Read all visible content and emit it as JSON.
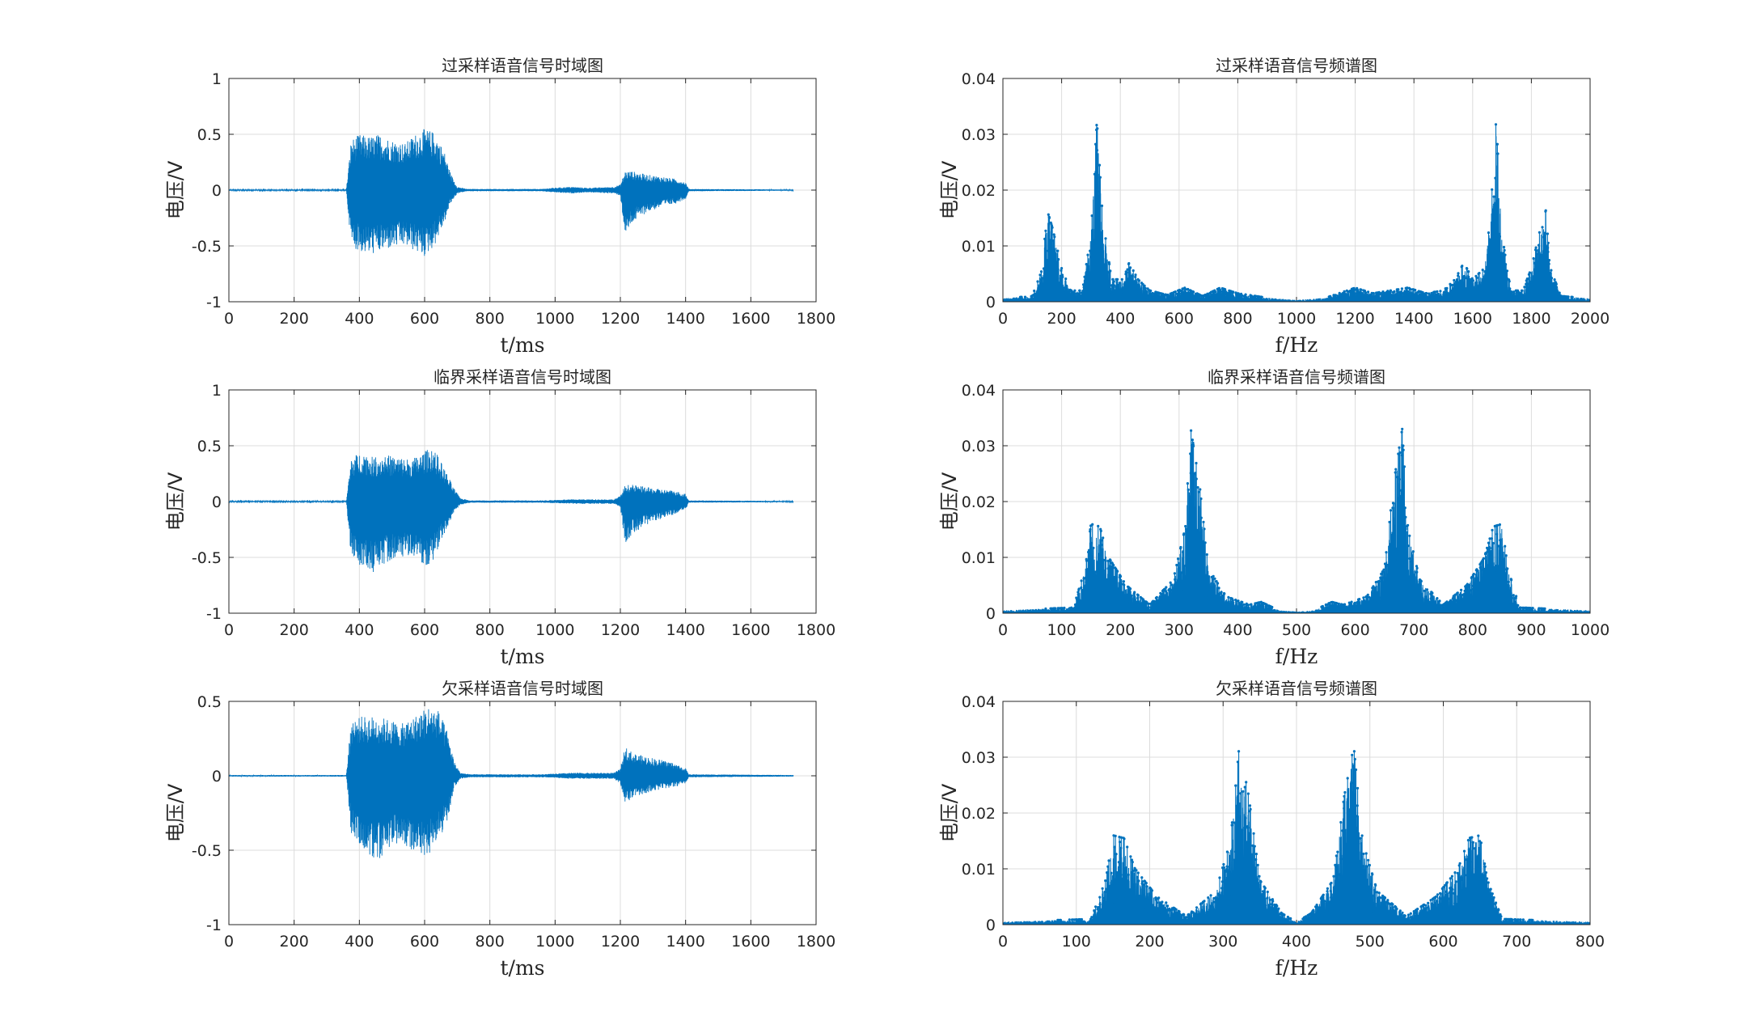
{
  "colors": {
    "line": "#0072BD",
    "grid": "#dcdcdc",
    "axis": "#262626",
    "background": "#ffffff"
  },
  "chart_data": [
    {
      "id": "over-time",
      "type": "line",
      "title": "过采样语音信号时域图",
      "xlabel": "t/ms",
      "ylabel": "电压/V",
      "xlim": [
        0,
        1800
      ],
      "ylim": [
        -1,
        1
      ],
      "xticks": [
        "0",
        "200",
        "400",
        "600",
        "800",
        "1000",
        "1200",
        "1400",
        "1600",
        "1800"
      ],
      "yticks": [
        "1",
        "0.5",
        "0",
        "-0.5",
        "-1"
      ],
      "grid": true,
      "markers": false,
      "x_end": 1730,
      "envelope": [
        [
          0,
          0.005,
          -0.005
        ],
        [
          360,
          0.005,
          -0.005
        ],
        [
          375,
          0.45,
          -0.5
        ],
        [
          400,
          0.5,
          -0.55
        ],
        [
          430,
          0.48,
          -0.58
        ],
        [
          460,
          0.5,
          -0.56
        ],
        [
          500,
          0.45,
          -0.52
        ],
        [
          540,
          0.42,
          -0.5
        ],
        [
          570,
          0.5,
          -0.55
        ],
        [
          600,
          0.55,
          -0.6
        ],
        [
          630,
          0.52,
          -0.5
        ],
        [
          660,
          0.35,
          -0.3
        ],
        [
          680,
          0.15,
          -0.12
        ],
        [
          700,
          0.03,
          -0.03
        ],
        [
          730,
          0.01,
          -0.01
        ],
        [
          960,
          0.01,
          -0.01
        ],
        [
          990,
          0.02,
          -0.02
        ],
        [
          1050,
          0.03,
          -0.03
        ],
        [
          1100,
          0.02,
          -0.02
        ],
        [
          1180,
          0.03,
          -0.03
        ],
        [
          1200,
          0.05,
          -0.05
        ],
        [
          1215,
          0.17,
          -0.42
        ],
        [
          1235,
          0.17,
          -0.3
        ],
        [
          1280,
          0.14,
          -0.2
        ],
        [
          1330,
          0.12,
          -0.15
        ],
        [
          1370,
          0.1,
          -0.12
        ],
        [
          1400,
          0.07,
          -0.08
        ],
        [
          1410,
          0.01,
          -0.01
        ],
        [
          1730,
          0.005,
          -0.005
        ]
      ]
    },
    {
      "id": "over-freq",
      "type": "line",
      "title": "过采样语音信号频谱图",
      "xlabel": "f/Hz",
      "ylabel": "电压/V",
      "xlim": [
        0,
        2000
      ],
      "ylim": [
        0,
        0.04
      ],
      "xticks": [
        "0",
        "200",
        "400",
        "600",
        "800",
        "1000",
        "1200",
        "1400",
        "1600",
        "1800",
        "2000"
      ],
      "yticks": [
        "0.04",
        "0.03",
        "0.02",
        "0.01",
        "0"
      ],
      "grid": true,
      "markers": true,
      "x_end": 2000,
      "envelope": [
        [
          0,
          0.0006
        ],
        [
          100,
          0.001
        ],
        [
          135,
          0.006
        ],
        [
          150,
          0.0165
        ],
        [
          170,
          0.013
        ],
        [
          200,
          0.006
        ],
        [
          230,
          0.002
        ],
        [
          270,
          0.002
        ],
        [
          300,
          0.012
        ],
        [
          320,
          0.0325
        ],
        [
          340,
          0.015
        ],
        [
          370,
          0.004
        ],
        [
          410,
          0.004
        ],
        [
          430,
          0.007
        ],
        [
          460,
          0.004
        ],
        [
          500,
          0.002
        ],
        [
          560,
          0.0012
        ],
        [
          620,
          0.0025
        ],
        [
          680,
          0.001
        ],
        [
          740,
          0.0025
        ],
        [
          800,
          0.0015
        ],
        [
          900,
          0.0007
        ],
        [
          1000,
          0.0003
        ],
        [
          1100,
          0.0007
        ],
        [
          1200,
          0.0025
        ],
        [
          1260,
          0.0015
        ],
        [
          1320,
          0.002
        ],
        [
          1380,
          0.0025
        ],
        [
          1440,
          0.0015
        ],
        [
          1500,
          0.002
        ],
        [
          1540,
          0.004
        ],
        [
          1570,
          0.007
        ],
        [
          1600,
          0.004
        ],
        [
          1640,
          0.006
        ],
        [
          1660,
          0.015
        ],
        [
          1680,
          0.0325
        ],
        [
          1700,
          0.012
        ],
        [
          1730,
          0.002
        ],
        [
          1770,
          0.002
        ],
        [
          1800,
          0.006
        ],
        [
          1830,
          0.013
        ],
        [
          1850,
          0.0165
        ],
        [
          1865,
          0.006
        ],
        [
          1900,
          0.001
        ],
        [
          2000,
          0.0006
        ]
      ]
    },
    {
      "id": "crit-time",
      "type": "line",
      "title": "临界采样语音信号时域图",
      "xlabel": "t/ms",
      "ylabel": "电压/V",
      "xlim": [
        0,
        1800
      ],
      "ylim": [
        -1,
        1
      ],
      "xticks": [
        "0",
        "200",
        "400",
        "600",
        "800",
        "1000",
        "1200",
        "1400",
        "1600",
        "1800"
      ],
      "yticks": [
        "1",
        "0.5",
        "0",
        "-0.5",
        "-1"
      ],
      "grid": true,
      "markers": false,
      "x_end": 1730,
      "envelope": [
        [
          0,
          0.005,
          -0.005
        ],
        [
          360,
          0.005,
          -0.005
        ],
        [
          375,
          0.4,
          -0.5
        ],
        [
          410,
          0.45,
          -0.6
        ],
        [
          440,
          0.4,
          -0.65
        ],
        [
          480,
          0.42,
          -0.55
        ],
        [
          520,
          0.4,
          -0.5
        ],
        [
          560,
          0.38,
          -0.48
        ],
        [
          600,
          0.45,
          -0.6
        ],
        [
          625,
          0.5,
          -0.55
        ],
        [
          660,
          0.3,
          -0.3
        ],
        [
          690,
          0.12,
          -0.1
        ],
        [
          710,
          0.03,
          -0.03
        ],
        [
          740,
          0.01,
          -0.01
        ],
        [
          960,
          0.01,
          -0.01
        ],
        [
          1050,
          0.02,
          -0.02
        ],
        [
          1180,
          0.02,
          -0.02
        ],
        [
          1200,
          0.05,
          -0.05
        ],
        [
          1215,
          0.15,
          -0.38
        ],
        [
          1240,
          0.15,
          -0.28
        ],
        [
          1300,
          0.12,
          -0.18
        ],
        [
          1360,
          0.1,
          -0.12
        ],
        [
          1400,
          0.07,
          -0.07
        ],
        [
          1410,
          0.01,
          -0.01
        ],
        [
          1730,
          0.005,
          -0.005
        ]
      ]
    },
    {
      "id": "crit-freq",
      "type": "line",
      "title": "临界采样语音信号频谱图",
      "xlabel": "f/Hz",
      "ylabel": "电压/V",
      "xlim": [
        0,
        1000
      ],
      "ylim": [
        0,
        0.04
      ],
      "xticks": [
        "0",
        "100",
        "200",
        "300",
        "400",
        "500",
        "600",
        "700",
        "800",
        "900",
        "1000"
      ],
      "yticks": [
        "0.04",
        "0.03",
        "0.02",
        "0.01",
        "0"
      ],
      "grid": true,
      "markers": true,
      "x_end": 1000,
      "envelope": [
        [
          0,
          0.0005
        ],
        [
          120,
          0.001
        ],
        [
          140,
          0.008
        ],
        [
          150,
          0.016
        ],
        [
          165,
          0.0155
        ],
        [
          180,
          0.01
        ],
        [
          210,
          0.005
        ],
        [
          250,
          0.0015
        ],
        [
          290,
          0.006
        ],
        [
          310,
          0.015
        ],
        [
          320,
          0.033
        ],
        [
          335,
          0.023
        ],
        [
          350,
          0.008
        ],
        [
          380,
          0.003
        ],
        [
          420,
          0.0015
        ],
        [
          440,
          0.002
        ],
        [
          470,
          0.0005
        ],
        [
          500,
          0.0003
        ],
        [
          530,
          0.0005
        ],
        [
          560,
          0.002
        ],
        [
          580,
          0.0015
        ],
        [
          620,
          0.003
        ],
        [
          650,
          0.008
        ],
        [
          665,
          0.023
        ],
        [
          680,
          0.033
        ],
        [
          690,
          0.015
        ],
        [
          710,
          0.006
        ],
        [
          750,
          0.0015
        ],
        [
          790,
          0.005
        ],
        [
          820,
          0.01
        ],
        [
          835,
          0.0155
        ],
        [
          850,
          0.016
        ],
        [
          860,
          0.008
        ],
        [
          880,
          0.001
        ],
        [
          1000,
          0.0005
        ]
      ]
    },
    {
      "id": "under-time",
      "type": "line",
      "title": "欠采样语音信号时域图",
      "xlabel": "t/ms",
      "ylabel": "电压/V",
      "xlim": [
        0,
        1800
      ],
      "ylim": [
        -1,
        0.5
      ],
      "xticks": [
        "0",
        "200",
        "400",
        "600",
        "800",
        "1000",
        "1200",
        "1400",
        "1600",
        "1800"
      ],
      "yticks": [
        "0.5",
        "0",
        "-0.5",
        "-1"
      ],
      "grid": true,
      "markers": false,
      "x_end": 1730,
      "envelope": [
        [
          0,
          0.005,
          -0.005
        ],
        [
          360,
          0.005,
          -0.005
        ],
        [
          375,
          0.38,
          -0.4
        ],
        [
          410,
          0.4,
          -0.48
        ],
        [
          450,
          0.4,
          -0.58
        ],
        [
          490,
          0.38,
          -0.5
        ],
        [
          530,
          0.35,
          -0.45
        ],
        [
          570,
          0.4,
          -0.52
        ],
        [
          610,
          0.47,
          -0.55
        ],
        [
          640,
          0.45,
          -0.45
        ],
        [
          670,
          0.3,
          -0.3
        ],
        [
          690,
          0.1,
          -0.08
        ],
        [
          710,
          0.02,
          -0.02
        ],
        [
          740,
          0.01,
          -0.01
        ],
        [
          960,
          0.01,
          -0.01
        ],
        [
          1050,
          0.02,
          -0.02
        ],
        [
          1180,
          0.02,
          -0.02
        ],
        [
          1200,
          0.05,
          -0.05
        ],
        [
          1215,
          0.2,
          -0.18
        ],
        [
          1240,
          0.15,
          -0.15
        ],
        [
          1300,
          0.12,
          -0.1
        ],
        [
          1360,
          0.09,
          -0.08
        ],
        [
          1400,
          0.05,
          -0.05
        ],
        [
          1410,
          0.01,
          -0.01
        ],
        [
          1730,
          0.005,
          -0.005
        ]
      ]
    },
    {
      "id": "under-freq",
      "type": "line",
      "title": "欠采样语音信号频谱图",
      "xlabel": "f/Hz",
      "ylabel": "电压/V",
      "xlim": [
        0,
        800
      ],
      "ylim": [
        0,
        0.04
      ],
      "xticks": [
        "0",
        "100",
        "200",
        "300",
        "400",
        "500",
        "600",
        "700",
        "800"
      ],
      "yticks": [
        "0.04",
        "0.03",
        "0.02",
        "0.01",
        "0"
      ],
      "grid": true,
      "markers": true,
      "x_end": 800,
      "envelope": [
        [
          0,
          0.0005
        ],
        [
          120,
          0.001
        ],
        [
          140,
          0.008
        ],
        [
          150,
          0.016
        ],
        [
          165,
          0.0155
        ],
        [
          180,
          0.01
        ],
        [
          210,
          0.005
        ],
        [
          250,
          0.0015
        ],
        [
          290,
          0.006
        ],
        [
          310,
          0.015
        ],
        [
          322,
          0.032
        ],
        [
          335,
          0.023
        ],
        [
          350,
          0.008
        ],
        [
          380,
          0.002
        ],
        [
          400,
          0.0005
        ],
        [
          420,
          0.002
        ],
        [
          450,
          0.008
        ],
        [
          465,
          0.023
        ],
        [
          478,
          0.032
        ],
        [
          490,
          0.015
        ],
        [
          510,
          0.006
        ],
        [
          550,
          0.0015
        ],
        [
          590,
          0.005
        ],
        [
          620,
          0.01
        ],
        [
          635,
          0.0155
        ],
        [
          650,
          0.016
        ],
        [
          660,
          0.008
        ],
        [
          680,
          0.001
        ],
        [
          800,
          0.0005
        ]
      ]
    }
  ]
}
